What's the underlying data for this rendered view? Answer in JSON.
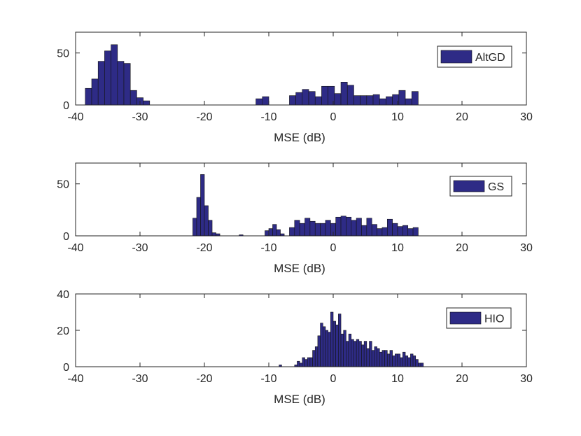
{
  "colors": {
    "bar_fill": "#2e2b86",
    "bar_edge": "#141414",
    "axis": "#262626",
    "legend_fill": "#2e2b86"
  },
  "chart_data": [
    {
      "type": "bar",
      "name": "AltGD",
      "legend": "AltGD",
      "legend_position": "top-right",
      "xlabel": "MSE (dB)",
      "ylabel": "",
      "xlim": [
        -40,
        30
      ],
      "ylim": [
        0,
        70
      ],
      "xticks": [
        "-40",
        "-30",
        "-20",
        "-10",
        "0",
        "10",
        "20",
        "30"
      ],
      "yticks": [
        "0",
        "50"
      ],
      "ytick_values": [
        0,
        50
      ],
      "bins": [
        {
          "x0": -38.5,
          "x1": -37.5,
          "count": 16
        },
        {
          "x0": -37.5,
          "x1": -36.5,
          "count": 25
        },
        {
          "x0": -36.5,
          "x1": -35.5,
          "count": 42
        },
        {
          "x0": -35.5,
          "x1": -34.5,
          "count": 52
        },
        {
          "x0": -34.5,
          "x1": -33.5,
          "count": 58
        },
        {
          "x0": -33.5,
          "x1": -32.5,
          "count": 42
        },
        {
          "x0": -32.5,
          "x1": -31.5,
          "count": 40
        },
        {
          "x0": -31.5,
          "x1": -30.5,
          "count": 14
        },
        {
          "x0": -30.5,
          "x1": -29.5,
          "count": 7
        },
        {
          "x0": -29.5,
          "x1": -28.5,
          "count": 4
        },
        {
          "x0": -12.0,
          "x1": -11.0,
          "count": 6
        },
        {
          "x0": -11.0,
          "x1": -10.0,
          "count": 8
        },
        {
          "x0": -6.8,
          "x1": -5.8,
          "count": 9
        },
        {
          "x0": -5.8,
          "x1": -4.8,
          "count": 12
        },
        {
          "x0": -4.8,
          "x1": -3.8,
          "count": 15
        },
        {
          "x0": -3.8,
          "x1": -2.8,
          "count": 13
        },
        {
          "x0": -2.8,
          "x1": -1.8,
          "count": 8
        },
        {
          "x0": -1.8,
          "x1": -0.8,
          "count": 18
        },
        {
          "x0": -0.8,
          "x1": 0.2,
          "count": 18
        },
        {
          "x0": 0.2,
          "x1": 1.2,
          "count": 11
        },
        {
          "x0": 1.2,
          "x1": 2.2,
          "count": 22
        },
        {
          "x0": 2.2,
          "x1": 3.2,
          "count": 19
        },
        {
          "x0": 3.2,
          "x1": 4.2,
          "count": 9
        },
        {
          "x0": 4.2,
          "x1": 5.2,
          "count": 9
        },
        {
          "x0": 5.2,
          "x1": 6.2,
          "count": 9
        },
        {
          "x0": 6.2,
          "x1": 7.2,
          "count": 10
        },
        {
          "x0": 7.2,
          "x1": 8.2,
          "count": 6
        },
        {
          "x0": 8.2,
          "x1": 9.2,
          "count": 8
        },
        {
          "x0": 9.2,
          "x1": 10.2,
          "count": 10
        },
        {
          "x0": 10.2,
          "x1": 11.2,
          "count": 14
        },
        {
          "x0": 11.2,
          "x1": 12.2,
          "count": 6
        },
        {
          "x0": 12.2,
          "x1": 13.2,
          "count": 13
        }
      ]
    },
    {
      "type": "bar",
      "name": "GS",
      "legend": "GS",
      "legend_position": "top-right",
      "xlabel": "MSE (dB)",
      "ylabel": "",
      "xlim": [
        -40,
        30
      ],
      "ylim": [
        0,
        70
      ],
      "xticks": [
        "-40",
        "-30",
        "-20",
        "-10",
        "0",
        "10",
        "20",
        "30"
      ],
      "yticks": [
        "0",
        "50"
      ],
      "ytick_values": [
        0,
        50
      ],
      "bins": [
        {
          "x0": -21.8,
          "x1": -21.2,
          "count": 17
        },
        {
          "x0": -21.2,
          "x1": -20.6,
          "count": 37
        },
        {
          "x0": -20.6,
          "x1": -20.0,
          "count": 59
        },
        {
          "x0": -20.0,
          "x1": -19.4,
          "count": 29
        },
        {
          "x0": -19.4,
          "x1": -18.8,
          "count": 15
        },
        {
          "x0": -18.8,
          "x1": -18.2,
          "count": 3
        },
        {
          "x0": -18.2,
          "x1": -17.6,
          "count": 2
        },
        {
          "x0": -14.6,
          "x1": -14.0,
          "count": 1
        },
        {
          "x0": -10.6,
          "x1": -10.0,
          "count": 5
        },
        {
          "x0": -10.0,
          "x1": -9.4,
          "count": 7
        },
        {
          "x0": -9.4,
          "x1": -8.8,
          "count": 11
        },
        {
          "x0": -8.8,
          "x1": -8.2,
          "count": 6
        },
        {
          "x0": -8.2,
          "x1": -7.6,
          "count": 2
        },
        {
          "x0": -6.8,
          "x1": -6.0,
          "count": 8
        },
        {
          "x0": -6.0,
          "x1": -5.2,
          "count": 15
        },
        {
          "x0": -5.2,
          "x1": -4.4,
          "count": 12
        },
        {
          "x0": -4.4,
          "x1": -3.6,
          "count": 17
        },
        {
          "x0": -3.6,
          "x1": -2.8,
          "count": 14
        },
        {
          "x0": -2.8,
          "x1": -2.0,
          "count": 12
        },
        {
          "x0": -2.0,
          "x1": -1.2,
          "count": 12
        },
        {
          "x0": -1.2,
          "x1": -0.4,
          "count": 15
        },
        {
          "x0": -0.4,
          "x1": 0.4,
          "count": 12
        },
        {
          "x0": 0.4,
          "x1": 1.2,
          "count": 18
        },
        {
          "x0": 1.2,
          "x1": 2.0,
          "count": 19
        },
        {
          "x0": 2.0,
          "x1": 2.8,
          "count": 18
        },
        {
          "x0": 2.8,
          "x1": 3.6,
          "count": 15
        },
        {
          "x0": 3.6,
          "x1": 4.4,
          "count": 17
        },
        {
          "x0": 4.4,
          "x1": 5.2,
          "count": 10
        },
        {
          "x0": 5.2,
          "x1": 6.0,
          "count": 17
        },
        {
          "x0": 6.0,
          "x1": 6.8,
          "count": 11
        },
        {
          "x0": 6.8,
          "x1": 7.6,
          "count": 7
        },
        {
          "x0": 7.6,
          "x1": 8.4,
          "count": 8
        },
        {
          "x0": 8.4,
          "x1": 9.2,
          "count": 16
        },
        {
          "x0": 9.2,
          "x1": 10.0,
          "count": 12
        },
        {
          "x0": 10.0,
          "x1": 10.8,
          "count": 9
        },
        {
          "x0": 10.8,
          "x1": 11.6,
          "count": 10
        },
        {
          "x0": 11.6,
          "x1": 12.4,
          "count": 7
        },
        {
          "x0": 12.4,
          "x1": 13.2,
          "count": 8
        }
      ]
    },
    {
      "type": "bar",
      "name": "HIO",
      "legend": "HIO",
      "legend_position": "top-right",
      "xlabel": "MSE (dB)",
      "ylabel": "",
      "xlim": [
        -40,
        30
      ],
      "ylim": [
        0,
        40
      ],
      "xticks": [
        "-40",
        "-30",
        "-20",
        "-10",
        "0",
        "10",
        "20",
        "30"
      ],
      "yticks": [
        "0",
        "20",
        "40"
      ],
      "ytick_values": [
        0,
        20,
        40
      ],
      "bins": [
        {
          "x0": -8.4,
          "x1": -8.0,
          "count": 1
        },
        {
          "x0": -6.0,
          "x1": -5.6,
          "count": 1
        },
        {
          "x0": -5.6,
          "x1": -5.2,
          "count": 3
        },
        {
          "x0": -5.2,
          "x1": -4.8,
          "count": 2
        },
        {
          "x0": -4.8,
          "x1": -4.4,
          "count": 5
        },
        {
          "x0": -4.4,
          "x1": -4.0,
          "count": 4
        },
        {
          "x0": -4.0,
          "x1": -3.6,
          "count": 5
        },
        {
          "x0": -3.6,
          "x1": -3.2,
          "count": 5
        },
        {
          "x0": -3.2,
          "x1": -2.8,
          "count": 9
        },
        {
          "x0": -2.8,
          "x1": -2.4,
          "count": 11
        },
        {
          "x0": -2.4,
          "x1": -2.0,
          "count": 17
        },
        {
          "x0": -2.0,
          "x1": -1.6,
          "count": 24
        },
        {
          "x0": -1.6,
          "x1": -1.2,
          "count": 22
        },
        {
          "x0": -1.2,
          "x1": -0.8,
          "count": 20
        },
        {
          "x0": -0.8,
          "x1": -0.4,
          "count": 19
        },
        {
          "x0": -0.4,
          "x1": 0.0,
          "count": 30
        },
        {
          "x0": 0.0,
          "x1": 0.4,
          "count": 25
        },
        {
          "x0": 0.4,
          "x1": 0.8,
          "count": 23
        },
        {
          "x0": 0.8,
          "x1": 1.2,
          "count": 29
        },
        {
          "x0": 1.2,
          "x1": 1.6,
          "count": 18
        },
        {
          "x0": 1.6,
          "x1": 2.0,
          "count": 20
        },
        {
          "x0": 2.0,
          "x1": 2.4,
          "count": 14
        },
        {
          "x0": 2.4,
          "x1": 2.8,
          "count": 18
        },
        {
          "x0": 2.8,
          "x1": 3.2,
          "count": 15
        },
        {
          "x0": 3.2,
          "x1": 3.6,
          "count": 14
        },
        {
          "x0": 3.6,
          "x1": 4.0,
          "count": 15
        },
        {
          "x0": 4.0,
          "x1": 4.4,
          "count": 14
        },
        {
          "x0": 4.4,
          "x1": 4.8,
          "count": 12
        },
        {
          "x0": 4.8,
          "x1": 5.2,
          "count": 14
        },
        {
          "x0": 5.2,
          "x1": 5.6,
          "count": 10
        },
        {
          "x0": 5.6,
          "x1": 6.0,
          "count": 14
        },
        {
          "x0": 6.0,
          "x1": 6.4,
          "count": 9
        },
        {
          "x0": 6.4,
          "x1": 6.8,
          "count": 11
        },
        {
          "x0": 6.8,
          "x1": 7.2,
          "count": 10
        },
        {
          "x0": 7.2,
          "x1": 7.6,
          "count": 8
        },
        {
          "x0": 7.6,
          "x1": 8.0,
          "count": 9
        },
        {
          "x0": 8.0,
          "x1": 8.4,
          "count": 9
        },
        {
          "x0": 8.4,
          "x1": 8.8,
          "count": 7
        },
        {
          "x0": 8.8,
          "x1": 9.2,
          "count": 9
        },
        {
          "x0": 9.2,
          "x1": 9.6,
          "count": 6
        },
        {
          "x0": 9.6,
          "x1": 10.0,
          "count": 7
        },
        {
          "x0": 10.0,
          "x1": 10.4,
          "count": 7
        },
        {
          "x0": 10.4,
          "x1": 10.8,
          "count": 5
        },
        {
          "x0": 10.8,
          "x1": 11.2,
          "count": 8
        },
        {
          "x0": 11.2,
          "x1": 11.6,
          "count": 6
        },
        {
          "x0": 11.6,
          "x1": 12.0,
          "count": 5
        },
        {
          "x0": 12.0,
          "x1": 12.4,
          "count": 7
        },
        {
          "x0": 12.4,
          "x1": 12.8,
          "count": 6
        },
        {
          "x0": 12.8,
          "x1": 13.2,
          "count": 4
        },
        {
          "x0": 13.2,
          "x1": 13.6,
          "count": 2
        },
        {
          "x0": 13.6,
          "x1": 14.0,
          "count": 2
        }
      ]
    }
  ]
}
